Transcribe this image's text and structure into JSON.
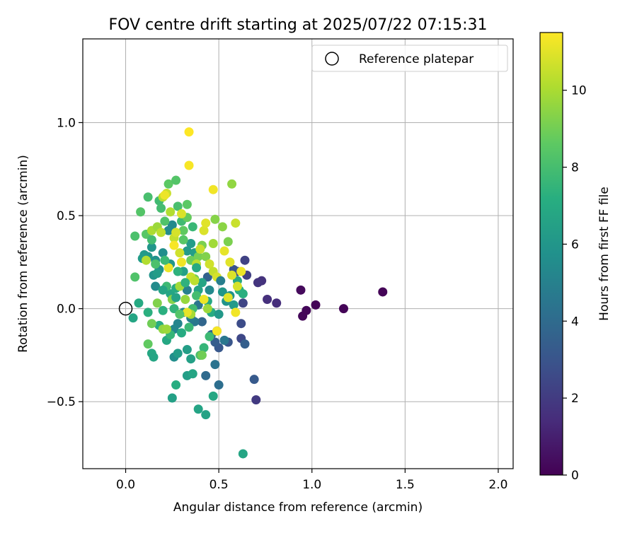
{
  "chart_data": {
    "type": "scatter",
    "title": "FOV centre drift starting at 2025/07/22 07:15:31",
    "xlabel": "Angular distance from reference (arcmin)",
    "ylabel": "Rotation from reference (arcmin)",
    "xlim": [
      -0.23,
      2.08
    ],
    "ylim": [
      -0.86,
      1.45
    ],
    "xticks": [
      0.0,
      0.5,
      1.0,
      1.5,
      2.0
    ],
    "xtick_labels": [
      "0.0",
      "0.5",
      "1.0",
      "1.5",
      "2.0"
    ],
    "yticks": [
      -0.5,
      0.0,
      0.5,
      1.0
    ],
    "ytick_labels": [
      "−0.5",
      "0.0",
      "0.5",
      "1.0"
    ],
    "grid": true,
    "legend": {
      "placement": "top-right",
      "entries": [
        {
          "label": "Reference platepar",
          "marker": "open-circle"
        }
      ]
    },
    "reference_point": {
      "x": 0.0,
      "y": 0.0
    },
    "colorbar": {
      "label": "Hours from first FF file",
      "colormap": "viridis",
      "range": [
        0,
        11.5
      ],
      "ticks": [
        0,
        2,
        4,
        6,
        8,
        10
      ],
      "tick_labels": [
        "0",
        "2",
        "4",
        "6",
        "8",
        "10"
      ]
    },
    "points": [
      {
        "x": 1.38,
        "y": 0.09,
        "h": 0.1
      },
      {
        "x": 1.17,
        "y": 0.0,
        "h": 0.1
      },
      {
        "x": 1.02,
        "y": 0.02,
        "h": 0.1
      },
      {
        "x": 0.97,
        "y": -0.01,
        "h": 0.2
      },
      {
        "x": 0.95,
        "y": -0.04,
        "h": 0.2
      },
      {
        "x": 0.94,
        "y": 0.1,
        "h": 0.3
      },
      {
        "x": 0.81,
        "y": 0.03,
        "h": 1.5
      },
      {
        "x": 0.76,
        "y": 0.05,
        "h": 1.6
      },
      {
        "x": 0.73,
        "y": 0.15,
        "h": 1.7
      },
      {
        "x": 0.71,
        "y": 0.14,
        "h": 1.8
      },
      {
        "x": 0.7,
        "y": -0.49,
        "h": 2.0
      },
      {
        "x": 0.65,
        "y": 0.18,
        "h": 2.2
      },
      {
        "x": 0.64,
        "y": 0.26,
        "h": 2.3
      },
      {
        "x": 0.63,
        "y": 0.03,
        "h": 2.4
      },
      {
        "x": 0.62,
        "y": -0.16,
        "h": 2.5
      },
      {
        "x": 0.62,
        "y": -0.08,
        "h": 2.7
      },
      {
        "x": 0.6,
        "y": 0.2,
        "h": 2.8
      },
      {
        "x": 0.58,
        "y": 0.21,
        "h": 3.0
      },
      {
        "x": 0.69,
        "y": -0.38,
        "h": 3.3
      },
      {
        "x": 0.64,
        "y": -0.19,
        "h": 3.5
      },
      {
        "x": 0.55,
        "y": -0.18,
        "h": 3.1
      },
      {
        "x": 0.5,
        "y": -0.21,
        "h": 3.2
      },
      {
        "x": 0.48,
        "y": -0.18,
        "h": 3.4
      },
      {
        "x": 0.49,
        "y": -0.12,
        "h": 3.6
      },
      {
        "x": 0.44,
        "y": 0.17,
        "h": 3.6
      },
      {
        "x": 0.46,
        "y": -0.14,
        "h": 3.7
      },
      {
        "x": 0.41,
        "y": -0.07,
        "h": 3.8
      },
      {
        "x": 0.43,
        "y": -0.36,
        "h": 4.0
      },
      {
        "x": 0.5,
        "y": -0.41,
        "h": 4.2
      },
      {
        "x": 0.48,
        "y": -0.3,
        "h": 4.4
      },
      {
        "x": 0.39,
        "y": 0.02,
        "h": 4.5
      },
      {
        "x": 0.37,
        "y": -0.07,
        "h": 4.6
      },
      {
        "x": 0.35,
        "y": -0.05,
        "h": 4.8
      },
      {
        "x": 0.33,
        "y": 0.1,
        "h": 5.0
      },
      {
        "x": 0.31,
        "y": -0.02,
        "h": 5.1
      },
      {
        "x": 0.28,
        "y": -0.08,
        "h": 5.2
      },
      {
        "x": 0.26,
        "y": -0.11,
        "h": 5.3
      },
      {
        "x": 0.25,
        "y": 0.45,
        "h": 5.4
      },
      {
        "x": 0.23,
        "y": 0.42,
        "h": 5.5
      },
      {
        "x": 0.2,
        "y": 0.3,
        "h": 5.6
      },
      {
        "x": 0.18,
        "y": 0.21,
        "h": 5.7
      },
      {
        "x": 0.16,
        "y": 0.26,
        "h": 5.8
      },
      {
        "x": 0.15,
        "y": 0.18,
        "h": 5.9
      },
      {
        "x": 0.14,
        "y": 0.33,
        "h": 6.0
      },
      {
        "x": 0.12,
        "y": 0.28,
        "h": 6.1
      },
      {
        "x": 0.1,
        "y": 0.29,
        "h": 6.2
      },
      {
        "x": 0.09,
        "y": 0.27,
        "h": 6.3
      },
      {
        "x": 0.16,
        "y": 0.12,
        "h": 5.5
      },
      {
        "x": 0.24,
        "y": 0.24,
        "h": 6.0
      },
      {
        "x": 0.26,
        "y": -0.26,
        "h": 5.6
      },
      {
        "x": 0.28,
        "y": -0.24,
        "h": 6.3
      },
      {
        "x": 0.33,
        "y": -0.22,
        "h": 6.4
      },
      {
        "x": 0.33,
        "y": -0.36,
        "h": 6.4
      },
      {
        "x": 0.35,
        "y": -0.27,
        "h": 6.5
      },
      {
        "x": 0.36,
        "y": -0.35,
        "h": 6.8
      },
      {
        "x": 0.39,
        "y": -0.54,
        "h": 6.7
      },
      {
        "x": 0.43,
        "y": -0.57,
        "h": 6.6
      },
      {
        "x": 0.47,
        "y": -0.47,
        "h": 6.9
      },
      {
        "x": 0.63,
        "y": -0.78,
        "h": 6.8
      },
      {
        "x": 0.25,
        "y": -0.48,
        "h": 6.5
      },
      {
        "x": 0.27,
        "y": -0.41,
        "h": 7.2
      },
      {
        "x": 0.04,
        "y": -0.05,
        "h": 6.8
      },
      {
        "x": 0.07,
        "y": 0.03,
        "h": 7.0
      },
      {
        "x": 0.12,
        "y": -0.02,
        "h": 7.3
      },
      {
        "x": 0.14,
        "y": -0.24,
        "h": 6.9
      },
      {
        "x": 0.15,
        "y": -0.26,
        "h": 6.8
      },
      {
        "x": 0.18,
        "y": -0.09,
        "h": 7.1
      },
      {
        "x": 0.2,
        "y": -0.01,
        "h": 7.3
      },
      {
        "x": 0.22,
        "y": -0.17,
        "h": 6.9
      },
      {
        "x": 0.24,
        "y": 0.08,
        "h": 6.8
      },
      {
        "x": 0.27,
        "y": 0.11,
        "h": 7.0
      },
      {
        "x": 0.3,
        "y": -0.13,
        "h": 7.1
      },
      {
        "x": 0.31,
        "y": 0.2,
        "h": 6.5
      },
      {
        "x": 0.33,
        "y": 0.31,
        "h": 6.2
      },
      {
        "x": 0.35,
        "y": 0.35,
        "h": 6.3
      },
      {
        "x": 0.37,
        "y": 0.3,
        "h": 6.4
      },
      {
        "x": 0.39,
        "y": 0.1,
        "h": 6.6
      },
      {
        "x": 0.41,
        "y": 0.14,
        "h": 6.8
      },
      {
        "x": 0.44,
        "y": 0.04,
        "h": 6.9
      },
      {
        "x": 0.46,
        "y": -0.02,
        "h": 7.1
      },
      {
        "x": 0.5,
        "y": -0.03,
        "h": 6.1
      },
      {
        "x": 0.52,
        "y": 0.09,
        "h": 6.0
      },
      {
        "x": 0.54,
        "y": 0.04,
        "h": 5.9
      },
      {
        "x": 0.56,
        "y": 0.07,
        "h": 5.8
      },
      {
        "x": 0.58,
        "y": 0.02,
        "h": 6.2
      },
      {
        "x": 0.6,
        "y": 0.15,
        "h": 6.9
      },
      {
        "x": 0.61,
        "y": 0.1,
        "h": 7.2
      },
      {
        "x": 0.63,
        "y": 0.08,
        "h": 7.3
      },
      {
        "x": 0.28,
        "y": 0.2,
        "h": 7.4
      },
      {
        "x": 0.26,
        "y": 0.0,
        "h": 7.5
      },
      {
        "x": 0.24,
        "y": -0.14,
        "h": 7.6
      },
      {
        "x": 0.22,
        "y": 0.12,
        "h": 7.8
      },
      {
        "x": 0.34,
        "y": -0.1,
        "h": 7.7
      },
      {
        "x": 0.36,
        "y": 0.0,
        "h": 7.9
      },
      {
        "x": 0.38,
        "y": 0.07,
        "h": 8.0
      },
      {
        "x": 0.4,
        "y": -0.25,
        "h": 8.1
      },
      {
        "x": 0.42,
        "y": -0.21,
        "h": 7.6
      },
      {
        "x": 0.45,
        "y": -0.15,
        "h": 7.8
      },
      {
        "x": 0.05,
        "y": 0.39,
        "h": 8.2
      },
      {
        "x": 0.05,
        "y": 0.17,
        "h": 8.3
      },
      {
        "x": 0.08,
        "y": 0.52,
        "h": 8.4
      },
      {
        "x": 0.11,
        "y": 0.4,
        "h": 8.5
      },
      {
        "x": 0.12,
        "y": 0.6,
        "h": 8.1
      },
      {
        "x": 0.14,
        "y": 0.37,
        "h": 8.0
      },
      {
        "x": 0.16,
        "y": 0.24,
        "h": 8.2
      },
      {
        "x": 0.18,
        "y": 0.58,
        "h": 7.9
      },
      {
        "x": 0.19,
        "y": 0.54,
        "h": 8.0
      },
      {
        "x": 0.21,
        "y": 0.47,
        "h": 8.3
      },
      {
        "x": 0.23,
        "y": 0.67,
        "h": 8.6
      },
      {
        "x": 0.27,
        "y": 0.69,
        "h": 8.4
      },
      {
        "x": 0.28,
        "y": 0.55,
        "h": 8.1
      },
      {
        "x": 0.3,
        "y": 0.47,
        "h": 7.9
      },
      {
        "x": 0.31,
        "y": 0.42,
        "h": 8.7
      },
      {
        "x": 0.33,
        "y": 0.56,
        "h": 8.6
      },
      {
        "x": 0.33,
        "y": 0.49,
        "h": 8.8
      },
      {
        "x": 0.35,
        "y": 0.26,
        "h": 8.9
      },
      {
        "x": 0.37,
        "y": 0.16,
        "h": 9.0
      },
      {
        "x": 0.39,
        "y": 0.28,
        "h": 9.1
      },
      {
        "x": 0.41,
        "y": 0.34,
        "h": 9.2
      },
      {
        "x": 0.43,
        "y": 0.28,
        "h": 9.3
      },
      {
        "x": 0.48,
        "y": 0.48,
        "h": 9.4
      },
      {
        "x": 0.52,
        "y": 0.44,
        "h": 9.5
      },
      {
        "x": 0.55,
        "y": 0.36,
        "h": 9.2
      },
      {
        "x": 0.57,
        "y": 0.67,
        "h": 9.6
      },
      {
        "x": 0.12,
        "y": -0.19,
        "h": 8.7
      },
      {
        "x": 0.14,
        "y": -0.08,
        "h": 9.0
      },
      {
        "x": 0.17,
        "y": 0.03,
        "h": 9.3
      },
      {
        "x": 0.2,
        "y": -0.11,
        "h": 9.6
      },
      {
        "x": 0.22,
        "y": -0.11,
        "h": 9.8
      },
      {
        "x": 0.25,
        "y": 0.05,
        "h": 9.4
      },
      {
        "x": 0.29,
        "y": 0.12,
        "h": 9.9
      },
      {
        "x": 0.32,
        "y": 0.05,
        "h": 9.7
      },
      {
        "x": 0.35,
        "y": -0.03,
        "h": 10.0
      },
      {
        "x": 0.41,
        "y": -0.25,
        "h": 9.0
      },
      {
        "x": 0.44,
        "y": 0.0,
        "h": 9.8
      },
      {
        "x": 0.47,
        "y": 0.35,
        "h": 9.9
      },
      {
        "x": 0.11,
        "y": 0.26,
        "h": 10.2
      },
      {
        "x": 0.14,
        "y": 0.42,
        "h": 10.1
      },
      {
        "x": 0.17,
        "y": 0.44,
        "h": 9.8
      },
      {
        "x": 0.19,
        "y": 0.41,
        "h": 10.4
      },
      {
        "x": 0.2,
        "y": 0.6,
        "h": 10.3
      },
      {
        "x": 0.22,
        "y": 0.62,
        "h": 10.6
      },
      {
        "x": 0.24,
        "y": 0.52,
        "h": 10.2
      },
      {
        "x": 0.26,
        "y": 0.38,
        "h": 10.5
      },
      {
        "x": 0.27,
        "y": 0.41,
        "h": 10.8
      },
      {
        "x": 0.29,
        "y": 0.3,
        "h": 10.7
      },
      {
        "x": 0.3,
        "y": 0.51,
        "h": 10.9
      },
      {
        "x": 0.35,
        "y": 0.17,
        "h": 10.6
      },
      {
        "x": 0.37,
        "y": 0.15,
        "h": 10.4
      },
      {
        "x": 0.38,
        "y": 0.24,
        "h": 10.3
      },
      {
        "x": 0.4,
        "y": 0.32,
        "h": 10.6
      },
      {
        "x": 0.42,
        "y": 0.42,
        "h": 10.9
      },
      {
        "x": 0.43,
        "y": 0.46,
        "h": 11.0
      },
      {
        "x": 0.45,
        "y": 0.24,
        "h": 10.7
      },
      {
        "x": 0.47,
        "y": 0.2,
        "h": 10.5
      },
      {
        "x": 0.49,
        "y": 0.17,
        "h": 10.8
      },
      {
        "x": 0.53,
        "y": 0.31,
        "h": 11.1
      },
      {
        "x": 0.56,
        "y": 0.25,
        "h": 11.0
      },
      {
        "x": 0.57,
        "y": 0.18,
        "h": 10.9
      },
      {
        "x": 0.59,
        "y": 0.46,
        "h": 10.6
      },
      {
        "x": 0.6,
        "y": 0.12,
        "h": 10.8
      },
      {
        "x": 0.62,
        "y": 0.2,
        "h": 11.2
      },
      {
        "x": 0.59,
        "y": -0.02,
        "h": 11.3
      },
      {
        "x": 0.55,
        "y": 0.06,
        "h": 11.0
      },
      {
        "x": 0.49,
        "y": -0.12,
        "h": 11.4
      },
      {
        "x": 0.42,
        "y": 0.05,
        "h": 11.2
      },
      {
        "x": 0.33,
        "y": -0.02,
        "h": 11.1
      },
      {
        "x": 0.3,
        "y": 0.25,
        "h": 11.3
      },
      {
        "x": 0.26,
        "y": 0.34,
        "h": 11.4
      },
      {
        "x": 0.23,
        "y": 0.22,
        "h": 11.2
      },
      {
        "x": 0.34,
        "y": 0.95,
        "h": 11.5
      },
      {
        "x": 0.34,
        "y": 0.77,
        "h": 11.4
      },
      {
        "x": 0.47,
        "y": 0.64,
        "h": 11.3
      },
      {
        "x": 0.21,
        "y": 0.61,
        "h": 11.2
      },
      {
        "x": 0.2,
        "y": 0.1,
        "h": 6.7
      },
      {
        "x": 0.17,
        "y": 0.19,
        "h": 6.3
      },
      {
        "x": 0.21,
        "y": 0.26,
        "h": 7.8
      },
      {
        "x": 0.32,
        "y": 0.14,
        "h": 7.4
      },
      {
        "x": 0.27,
        "y": 0.06,
        "h": 6.6
      },
      {
        "x": 0.38,
        "y": 0.22,
        "h": 7.0
      },
      {
        "x": 0.45,
        "y": 0.1,
        "h": 5.4
      },
      {
        "x": 0.51,
        "y": 0.15,
        "h": 4.9
      },
      {
        "x": 0.53,
        "y": -0.17,
        "h": 4.6
      },
      {
        "x": 0.29,
        "y": -0.03,
        "h": 8.4
      },
      {
        "x": 0.31,
        "y": 0.37,
        "h": 8.5
      },
      {
        "x": 0.36,
        "y": 0.44,
        "h": 7.7
      }
    ]
  }
}
